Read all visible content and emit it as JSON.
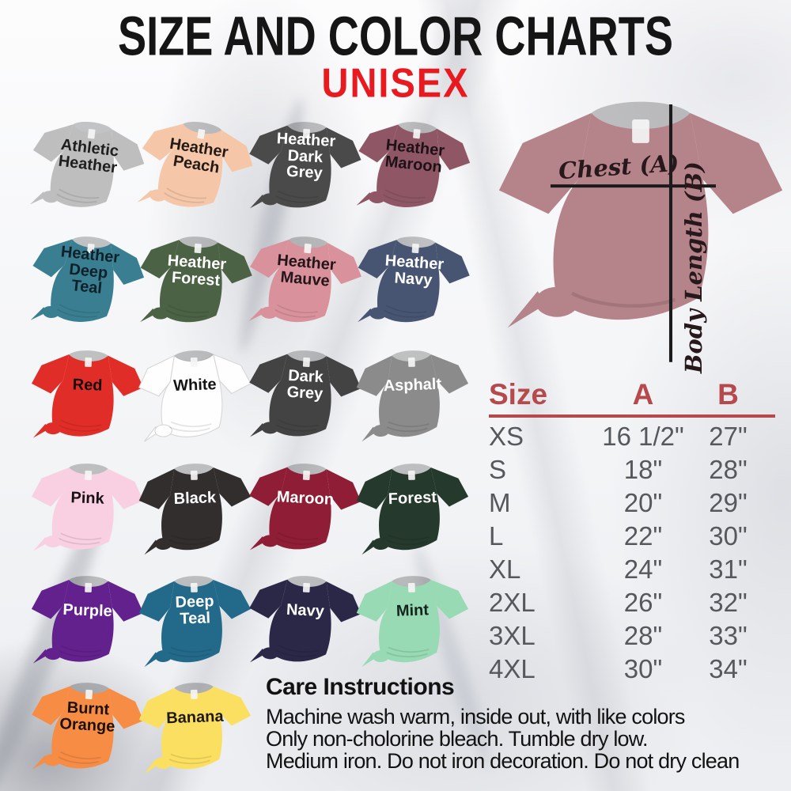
{
  "title": "SIZE AND COLOR CHARTS",
  "subtitle": "UNISEX",
  "accent_colors": {
    "title": "#151515",
    "subtitle": "#e8191f",
    "table_header": "#b5494c",
    "table_text": "#55585c",
    "measure_line": "#1b1b1b"
  },
  "shirt_grid": {
    "items": [
      {
        "name": "Athletic Heather",
        "label_lines": [
          "Athletic",
          "Heather"
        ],
        "fill": "#bebebe",
        "text_color": "#1f1f1f"
      },
      {
        "name": "Heather Peach",
        "label_lines": [
          "Heather",
          "Peach"
        ],
        "fill": "#f5c6a8",
        "text_color": "#231a16"
      },
      {
        "name": "Heather Dark Grey",
        "label_lines": [
          "Heather",
          "Dark",
          "Grey"
        ],
        "fill": "#4b4a4a",
        "text_color": "#ffffff"
      },
      {
        "name": "Heather Maroon",
        "label_lines": [
          "Heather",
          "Maroon"
        ],
        "fill": "#8f5765",
        "text_color": "#1d1216"
      },
      {
        "name": "Heather Deep Teal",
        "label_lines": [
          "Heather",
          "Deep",
          "Teal"
        ],
        "fill": "#3a7f91",
        "text_color": "#0e2129"
      },
      {
        "name": "Heather Forest",
        "label_lines": [
          "Heather",
          "Forest"
        ],
        "fill": "#4c6244",
        "text_color": "#ffffff"
      },
      {
        "name": "Heather Mauve",
        "label_lines": [
          "Heather",
          "Mauve"
        ],
        "fill": "#d9929b",
        "text_color": "#24151a"
      },
      {
        "name": "Heather Navy",
        "label_lines": [
          "Heather",
          "Navy"
        ],
        "fill": "#475573",
        "text_color": "#ffffff"
      },
      {
        "name": "Red",
        "label_lines": [
          "Red"
        ],
        "fill": "#e12d28",
        "text_color": "#170a0a"
      },
      {
        "name": "White",
        "label_lines": [
          "White"
        ],
        "fill": "#fefefe",
        "text_color": "#141414",
        "border": "#d5d5d5"
      },
      {
        "name": "Dark Grey",
        "label_lines": [
          "Dark",
          "Grey"
        ],
        "fill": "#444343",
        "text_color": "#ffffff"
      },
      {
        "name": "Asphalt",
        "label_lines": [
          "Asphalt"
        ],
        "fill": "#8b8b8b",
        "text_color": "#ffffff"
      },
      {
        "name": "Pink",
        "label_lines": [
          "Pink"
        ],
        "fill": "#f8d0e1",
        "text_color": "#161214"
      },
      {
        "name": "Black",
        "label_lines": [
          "Black"
        ],
        "fill": "#322e2e",
        "text_color": "#ffffff"
      },
      {
        "name": "Maroon",
        "label_lines": [
          "Maroon"
        ],
        "fill": "#8e1d35",
        "text_color": "#ffffff"
      },
      {
        "name": "Forest",
        "label_lines": [
          "Forest"
        ],
        "fill": "#26392d",
        "text_color": "#ffffff"
      },
      {
        "name": "Purple",
        "label_lines": [
          "Purple"
        ],
        "fill": "#63218e",
        "text_color": "#ffffff"
      },
      {
        "name": "Deep Teal",
        "label_lines": [
          "Deep",
          "Teal"
        ],
        "fill": "#236a8a",
        "text_color": "#ffffff"
      },
      {
        "name": "Navy",
        "label_lines": [
          "Navy"
        ],
        "fill": "#2b2847",
        "text_color": "#ffffff"
      },
      {
        "name": "Mint",
        "label_lines": [
          "Mint"
        ],
        "fill": "#97dab3",
        "text_color": "#15241c"
      },
      {
        "name": "Burnt Orange",
        "label_lines": [
          "Burnt",
          "Orange"
        ],
        "fill": "#f78c45",
        "text_color": "#1d1209"
      },
      {
        "name": "Banana",
        "label_lines": [
          "Banana"
        ],
        "fill": "#fbdf60",
        "text_color": "#1f1a0c"
      }
    ]
  },
  "measurement_shirt": {
    "fill": "#b5838a",
    "chest_label": "Chest (A)",
    "body_length_label": "Body Length (B)"
  },
  "size_chart": {
    "headers": [
      "Size",
      "A",
      "B"
    ],
    "rows": [
      [
        "XS",
        "16 1/2\"",
        "27\""
      ],
      [
        "S",
        "18\"",
        "28\""
      ],
      [
        "M",
        "20\"",
        "29\""
      ],
      [
        "L",
        "22\"",
        "30\""
      ],
      [
        "XL",
        "24\"",
        "31\""
      ],
      [
        "2XL",
        "26\"",
        "32\""
      ],
      [
        "3XL",
        "28\"",
        "33\""
      ],
      [
        "4XL",
        "30\"",
        "34\""
      ]
    ]
  },
  "care": {
    "heading": "Care Instructions",
    "lines": [
      "Machine wash warm, inside out, with like colors",
      "Only non-cholorine bleach. Tumble dry low.",
      "Medium iron. Do not iron decoration. Do not dry clean"
    ]
  },
  "chart_data": {
    "type": "table",
    "title": "Size and Color Charts — Unisex",
    "columns": [
      "Size",
      "A (Chest)",
      "B (Body Length)"
    ],
    "rows": [
      [
        "XS",
        "16 1/2\"",
        "27\""
      ],
      [
        "S",
        "18\"",
        "28\""
      ],
      [
        "M",
        "20\"",
        "29\""
      ],
      [
        "L",
        "22\"",
        "30\""
      ],
      [
        "XL",
        "24\"",
        "31\""
      ],
      [
        "2XL",
        "26\"",
        "32\""
      ],
      [
        "3XL",
        "28\"",
        "33\""
      ],
      [
        "4XL",
        "30\"",
        "34\""
      ]
    ],
    "color_options": [
      "Athletic Heather",
      "Heather Peach",
      "Heather Dark Grey",
      "Heather Maroon",
      "Heather Deep Teal",
      "Heather Forest",
      "Heather Mauve",
      "Heather Navy",
      "Red",
      "White",
      "Dark Grey",
      "Asphalt",
      "Pink",
      "Black",
      "Maroon",
      "Forest",
      "Purple",
      "Deep Teal",
      "Navy",
      "Mint",
      "Burnt Orange",
      "Banana"
    ]
  }
}
